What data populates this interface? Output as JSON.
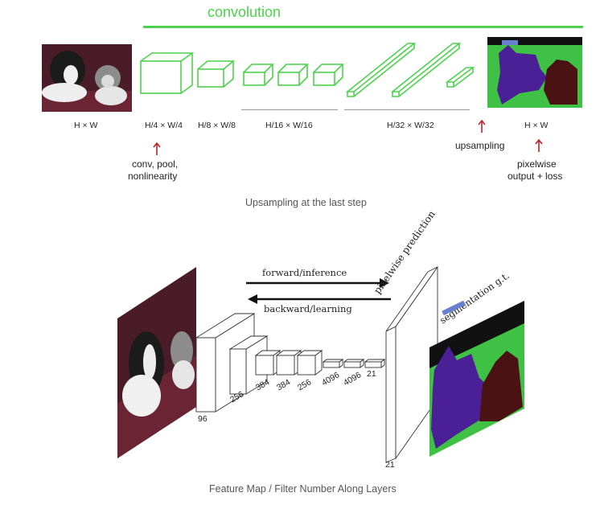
{
  "top": {
    "header": "convolution",
    "accent": "#4cd24c",
    "arrow_color": "#c0222b",
    "stage_labels": [
      "H × W",
      "H/4 × W/4",
      "H/8 × W/8",
      "H/16 × W/16",
      "H/32 × W/32",
      "H × W"
    ],
    "upsampling": "upsampling",
    "conv_note": [
      "conv, pool,",
      "nonlinearity"
    ],
    "loss_note": [
      "pixelwise",
      "output + loss"
    ],
    "caption": "Upsampling at the last step"
  },
  "bottom": {
    "forward": "forward/inference",
    "backward": "backward/learning",
    "pixelwise": "pixelwise prediction",
    "segmentation": "segmentation g.t.",
    "numbers": [
      "96",
      "256",
      "384",
      "384",
      "256",
      "4096",
      "4096",
      "21"
    ],
    "out_number": "21",
    "caption": "Feature Map / Filter Number Along Layers"
  },
  "colors": {
    "seg_green": "#3ec144",
    "seg_purple": "#4b1f96",
    "seg_maroon": "#4a1212",
    "photo_dark": "#4a1c2a"
  }
}
